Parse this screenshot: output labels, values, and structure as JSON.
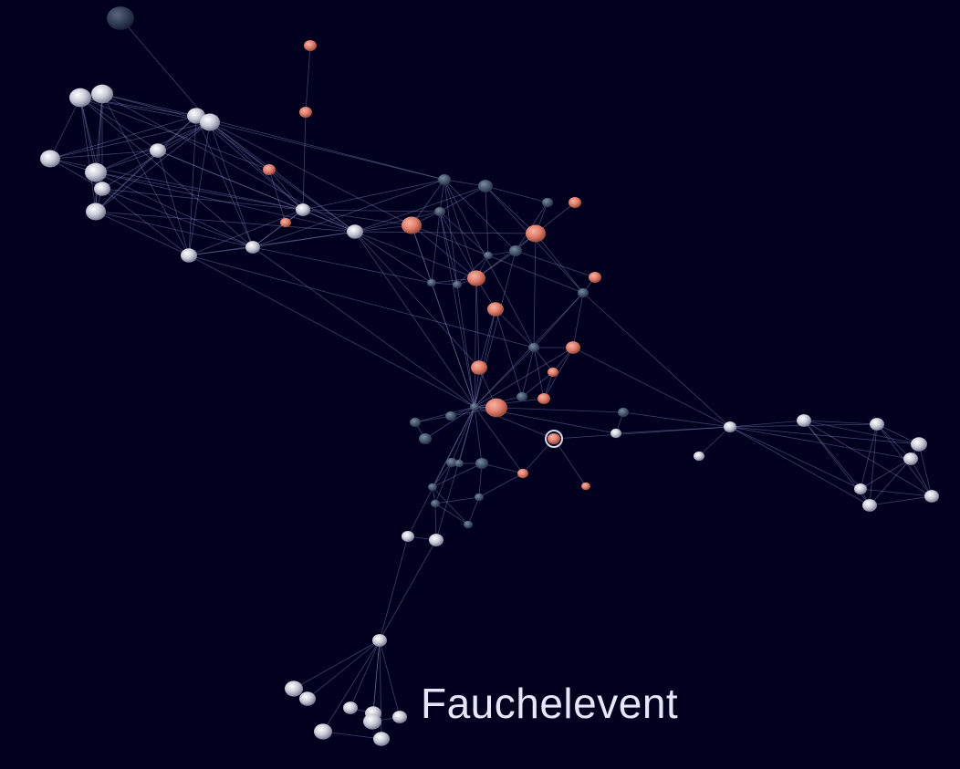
{
  "graph": {
    "background": "#01011f",
    "edge_color": "#8a8fc0",
    "group_colors": {
      "white": "#d9dbe8",
      "slate": "#4b5b72",
      "salmon": "#e07f6d"
    },
    "hovered_node_label": "Fauchelevent"
  }
}
